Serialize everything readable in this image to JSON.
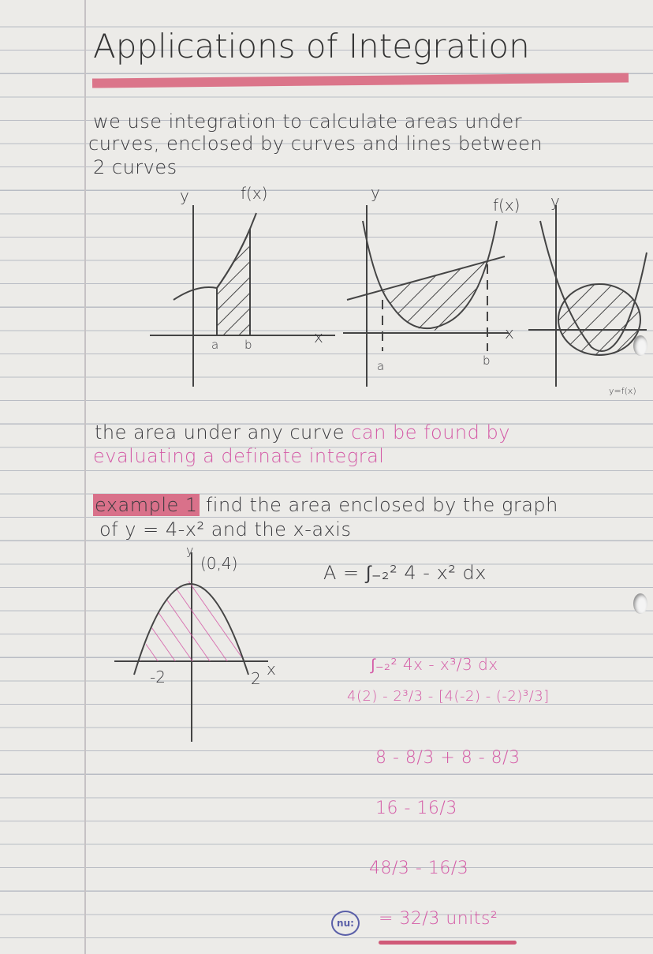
{
  "title": "Applications of Integration",
  "intro": [
    "we use integration to calculate areas under",
    "curves, enclosed by curves and lines between",
    "2 curves"
  ],
  "graphs": {
    "g1": {
      "y": "y",
      "fx": "f(x)",
      "x": "x",
      "a": "a",
      "b": "b"
    },
    "g2": {
      "y": "y",
      "fx": "f(x)",
      "x": "x",
      "a": "a",
      "b": "b"
    },
    "g3": {
      "y": "y",
      "gx": "y=f(x)"
    }
  },
  "statement": {
    "black": "the area under any curve",
    "pink1": "can be found by",
    "pink2": "evaluating a definate integral"
  },
  "example": {
    "label": "example 1",
    "text1": "find the area enclosed by the graph",
    "text2": "of y = 4-x² and the x-axis"
  },
  "example_graph": {
    "y": "y",
    "point": "(0,4)",
    "xneg": "-2",
    "xpos": "2",
    "x": "x"
  },
  "working": [
    "A = ∫₋₂² 4 - x² dx",
    "∫₋₂² 4x - x³/3 dx",
    "4(2) - 2³/3 - [4(-2) - (-2)³/3]",
    "8 - 8/3 + 8 - 8/3",
    "16 - 16/3",
    "48/3 - 16/3",
    "= 32/3 units²"
  ],
  "logo": "nu:",
  "colors": {
    "pink_ink": "#d45aa6",
    "highlighter": "#d9687f",
    "ink": "#3a3a3e"
  }
}
